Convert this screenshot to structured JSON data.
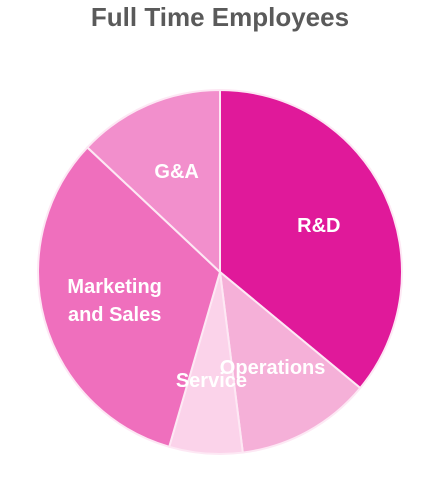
{
  "chart_data": {
    "type": "pie",
    "title": "Full Time Employees",
    "categories": [
      "R&D",
      "Operations",
      "Service",
      "Marketing and Sales",
      "G&A"
    ],
    "values": [
      36,
      12,
      6.5,
      32.5,
      13
    ],
    "colors": [
      "#e0199a",
      "#f5b0d8",
      "#fbd3ea",
      "#ef6fbd",
      "#f28fcc"
    ]
  }
}
